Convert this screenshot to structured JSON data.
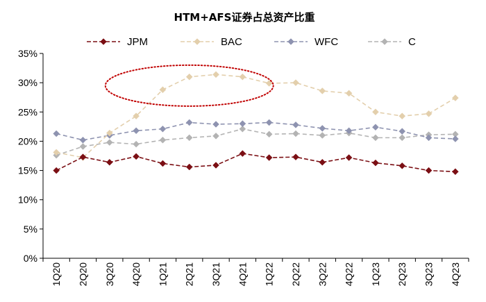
{
  "chart_data": {
    "type": "line",
    "title": "HTM+AFS证券占总资产比重",
    "categories": [
      "1Q20",
      "2Q20",
      "3Q20",
      "4Q20",
      "1Q21",
      "2Q21",
      "3Q21",
      "4Q21",
      "1Q22",
      "2Q22",
      "3Q22",
      "4Q22",
      "1Q23",
      "2Q23",
      "3Q23",
      "4Q23"
    ],
    "ylim": [
      0,
      35
    ],
    "y_ticks": [
      "0%",
      "5%",
      "10%",
      "15%",
      "20%",
      "25%",
      "30%",
      "35%"
    ],
    "legend_position": "top",
    "series": [
      {
        "name": "JPM",
        "color": "#7b0f14",
        "values": [
          15.0,
          17.3,
          16.4,
          17.4,
          16.2,
          15.6,
          15.9,
          17.9,
          17.2,
          17.3,
          16.4,
          17.2,
          16.3,
          15.8,
          15.0,
          14.8
        ]
      },
      {
        "name": "BAC",
        "color": "#e3cfac",
        "values": [
          18.1,
          17.2,
          21.4,
          24.3,
          28.8,
          31.0,
          31.4,
          31.0,
          29.9,
          30.0,
          28.6,
          28.2,
          25.0,
          24.3,
          24.7,
          27.4
        ]
      },
      {
        "name": "WFC",
        "color": "#8e93b0",
        "values": [
          21.3,
          20.2,
          21.0,
          21.8,
          22.1,
          23.2,
          22.9,
          23.0,
          23.2,
          22.8,
          22.2,
          21.8,
          22.4,
          21.7,
          20.6,
          20.4
        ]
      },
      {
        "name": "C",
        "color": "#b3b3b3",
        "values": [
          17.6,
          19.1,
          19.8,
          19.5,
          20.2,
          20.6,
          20.9,
          22.1,
          21.2,
          21.3,
          21.0,
          21.4,
          20.6,
          20.6,
          21.1,
          21.2
        ]
      }
    ],
    "annotation": {
      "shape": "ellipse",
      "style": "dotted",
      "color": "#c00000",
      "from_category": "3Q20",
      "to_category": "1Q22",
      "y_center": 29.5,
      "y_half_range": 3.5
    }
  }
}
